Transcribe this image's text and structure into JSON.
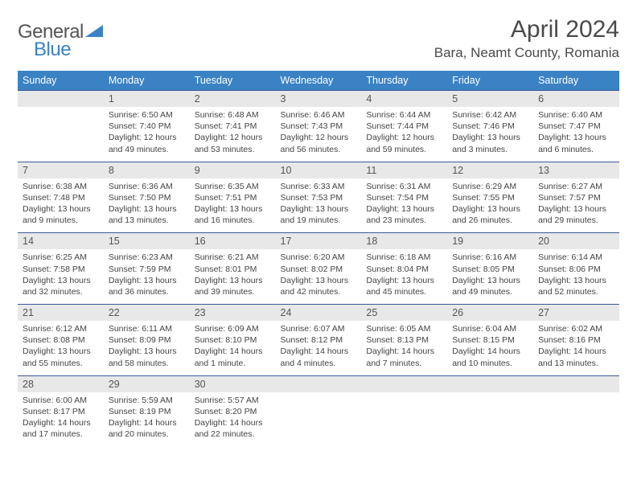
{
  "logo": {
    "part1": "General",
    "part2": "Blue"
  },
  "title": "April 2024",
  "location": "Bara, Neamt County, Romania",
  "colors": {
    "header_bg": "#3b82c4",
    "header_text": "#ffffff",
    "daynum_bg": "#e8e8e8",
    "daynum_text": "#555555",
    "rule": "#3b5998",
    "body_text": "#444444"
  },
  "weekdays": [
    "Sunday",
    "Monday",
    "Tuesday",
    "Wednesday",
    "Thursday",
    "Friday",
    "Saturday"
  ],
  "weeks": [
    {
      "nums": [
        "",
        "1",
        "2",
        "3",
        "4",
        "5",
        "6"
      ],
      "cells": [
        null,
        {
          "sunrise": "6:50 AM",
          "sunset": "7:40 PM",
          "daylight": "12 hours and 49 minutes."
        },
        {
          "sunrise": "6:48 AM",
          "sunset": "7:41 PM",
          "daylight": "12 hours and 53 minutes."
        },
        {
          "sunrise": "6:46 AM",
          "sunset": "7:43 PM",
          "daylight": "12 hours and 56 minutes."
        },
        {
          "sunrise": "6:44 AM",
          "sunset": "7:44 PM",
          "daylight": "12 hours and 59 minutes."
        },
        {
          "sunrise": "6:42 AM",
          "sunset": "7:46 PM",
          "daylight": "13 hours and 3 minutes."
        },
        {
          "sunrise": "6:40 AM",
          "sunset": "7:47 PM",
          "daylight": "13 hours and 6 minutes."
        }
      ]
    },
    {
      "nums": [
        "7",
        "8",
        "9",
        "10",
        "11",
        "12",
        "13"
      ],
      "cells": [
        {
          "sunrise": "6:38 AM",
          "sunset": "7:48 PM",
          "daylight": "13 hours and 9 minutes."
        },
        {
          "sunrise": "6:36 AM",
          "sunset": "7:50 PM",
          "daylight": "13 hours and 13 minutes."
        },
        {
          "sunrise": "6:35 AM",
          "sunset": "7:51 PM",
          "daylight": "13 hours and 16 minutes."
        },
        {
          "sunrise": "6:33 AM",
          "sunset": "7:53 PM",
          "daylight": "13 hours and 19 minutes."
        },
        {
          "sunrise": "6:31 AM",
          "sunset": "7:54 PM",
          "daylight": "13 hours and 23 minutes."
        },
        {
          "sunrise": "6:29 AM",
          "sunset": "7:55 PM",
          "daylight": "13 hours and 26 minutes."
        },
        {
          "sunrise": "6:27 AM",
          "sunset": "7:57 PM",
          "daylight": "13 hours and 29 minutes."
        }
      ]
    },
    {
      "nums": [
        "14",
        "15",
        "16",
        "17",
        "18",
        "19",
        "20"
      ],
      "cells": [
        {
          "sunrise": "6:25 AM",
          "sunset": "7:58 PM",
          "daylight": "13 hours and 32 minutes."
        },
        {
          "sunrise": "6:23 AM",
          "sunset": "7:59 PM",
          "daylight": "13 hours and 36 minutes."
        },
        {
          "sunrise": "6:21 AM",
          "sunset": "8:01 PM",
          "daylight": "13 hours and 39 minutes."
        },
        {
          "sunrise": "6:20 AM",
          "sunset": "8:02 PM",
          "daylight": "13 hours and 42 minutes."
        },
        {
          "sunrise": "6:18 AM",
          "sunset": "8:04 PM",
          "daylight": "13 hours and 45 minutes."
        },
        {
          "sunrise": "6:16 AM",
          "sunset": "8:05 PM",
          "daylight": "13 hours and 49 minutes."
        },
        {
          "sunrise": "6:14 AM",
          "sunset": "8:06 PM",
          "daylight": "13 hours and 52 minutes."
        }
      ]
    },
    {
      "nums": [
        "21",
        "22",
        "23",
        "24",
        "25",
        "26",
        "27"
      ],
      "cells": [
        {
          "sunrise": "6:12 AM",
          "sunset": "8:08 PM",
          "daylight": "13 hours and 55 minutes."
        },
        {
          "sunrise": "6:11 AM",
          "sunset": "8:09 PM",
          "daylight": "13 hours and 58 minutes."
        },
        {
          "sunrise": "6:09 AM",
          "sunset": "8:10 PM",
          "daylight": "14 hours and 1 minute."
        },
        {
          "sunrise": "6:07 AM",
          "sunset": "8:12 PM",
          "daylight": "14 hours and 4 minutes."
        },
        {
          "sunrise": "6:05 AM",
          "sunset": "8:13 PM",
          "daylight": "14 hours and 7 minutes."
        },
        {
          "sunrise": "6:04 AM",
          "sunset": "8:15 PM",
          "daylight": "14 hours and 10 minutes."
        },
        {
          "sunrise": "6:02 AM",
          "sunset": "8:16 PM",
          "daylight": "14 hours and 13 minutes."
        }
      ]
    },
    {
      "nums": [
        "28",
        "29",
        "30",
        "",
        "",
        "",
        ""
      ],
      "cells": [
        {
          "sunrise": "6:00 AM",
          "sunset": "8:17 PM",
          "daylight": "14 hours and 17 minutes."
        },
        {
          "sunrise": "5:59 AM",
          "sunset": "8:19 PM",
          "daylight": "14 hours and 20 minutes."
        },
        {
          "sunrise": "5:57 AM",
          "sunset": "8:20 PM",
          "daylight": "14 hours and 22 minutes."
        },
        null,
        null,
        null,
        null
      ]
    }
  ],
  "labels": {
    "sunrise": "Sunrise: ",
    "sunset": "Sunset: ",
    "daylight": "Daylight: "
  }
}
